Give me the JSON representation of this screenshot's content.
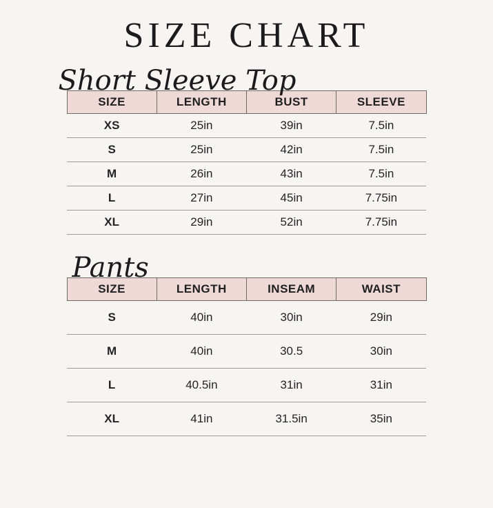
{
  "page": {
    "title": "SIZE CHART",
    "background_color": "#f7f5f1",
    "accent_pink": "#eed9d6",
    "header_border_color": "#6e6963",
    "row_line_color": "#9b9b9b",
    "text_color": "#202022"
  },
  "short_sleeve_top": {
    "heading": "Short Sleeve Top",
    "columns": [
      "SIZE",
      "LENGTH",
      "BUST",
      "SLEEVE"
    ],
    "rows": [
      [
        "XS",
        "25in",
        "39in",
        "7.5in"
      ],
      [
        "S",
        "25in",
        "42in",
        "7.5in"
      ],
      [
        "M",
        "26in",
        "43in",
        "7.5in"
      ],
      [
        "L",
        "27in",
        "45in",
        "7.75in"
      ],
      [
        "XL",
        "29in",
        "52in",
        "7.75in"
      ]
    ]
  },
  "pants": {
    "heading": "Pants",
    "columns": [
      "SIZE",
      "LENGTH",
      "INSEAM",
      "WAIST"
    ],
    "rows": [
      [
        "S",
        "40in",
        "30in",
        "29in"
      ],
      [
        "M",
        "40in",
        "30.5",
        "30in"
      ],
      [
        "L",
        "40.5in",
        "31in",
        "31in"
      ],
      [
        "XL",
        "41in",
        "31.5in",
        "35in"
      ]
    ]
  }
}
